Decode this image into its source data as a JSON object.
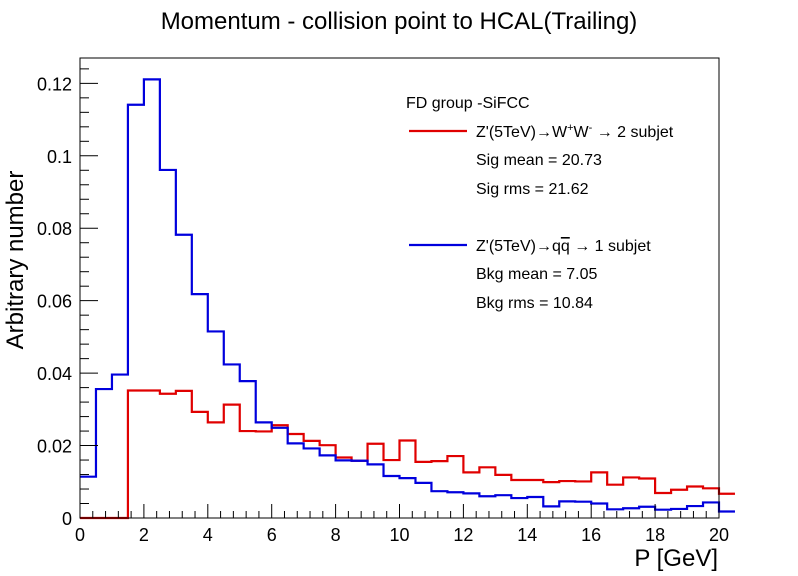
{
  "chart_data": {
    "type": "line",
    "title": "Momentum - collision point to HCAL(Trailing)",
    "xlabel": "P [GeV]",
    "ylabel": "Arbitrary number",
    "xlim": [
      0,
      20
    ],
    "ylim": [
      0,
      0.127
    ],
    "xticks": [
      0,
      2,
      4,
      6,
      8,
      10,
      12,
      14,
      16,
      18,
      20
    ],
    "xtick_labels": [
      "0",
      "2",
      "4",
      "6",
      "8",
      "10",
      "12",
      "14",
      "16",
      "18",
      "20"
    ],
    "yticks": [
      0,
      0.02,
      0.04,
      0.06,
      0.08,
      0.1,
      0.12
    ],
    "ytick_labels": [
      "0",
      "0.02",
      "0.04",
      "0.06",
      "0.08",
      "0.1",
      "0.12"
    ],
    "bin_width": 0.5,
    "grid": false,
    "legend": {
      "header": "FD group -SiFCC",
      "placement": "top-right",
      "entries": [
        {
          "series": 0,
          "label_parts": [
            "Z'(5TeV)",
            "→",
            "W",
            "+",
            "W",
            "-",
            " → 2 subjet"
          ],
          "stats": [
            "Sig mean = 20.73",
            "Sig rms = 21.62"
          ]
        },
        {
          "series": 1,
          "label_parts": [
            "Z'(5TeV)",
            "→",
            "q",
            "q",
            " → 1 subjet"
          ],
          "stats": [
            "Bkg mean = 7.05",
            "Bkg rms = 10.84"
          ]
        }
      ]
    },
    "series": [
      {
        "color": "#e00000",
        "bin_edges_start": 0,
        "values": [
          0,
          0,
          0,
          0.0352,
          0.0352,
          0.0343,
          0.0351,
          0.0293,
          0.0264,
          0.0313,
          0.024,
          0.0239,
          0.0256,
          0.0232,
          0.0213,
          0.0201,
          0.0167,
          0.0158,
          0.0205,
          0.016,
          0.0214,
          0.0155,
          0.0157,
          0.0171,
          0.0126,
          0.014,
          0.0119,
          0.0105,
          0.0105,
          0.0099,
          0.0102,
          0.0101,
          0.0126,
          0.0092,
          0.0112,
          0.0109,
          0.0069,
          0.0078,
          0.0087,
          0.0082,
          0.0067
        ]
      },
      {
        "color": "#0000dd",
        "bin_edges_start": 0,
        "values": [
          0.0114,
          0.0356,
          0.0396,
          0.1141,
          0.1211,
          0.0961,
          0.0782,
          0.0618,
          0.0515,
          0.0424,
          0.0378,
          0.0264,
          0.0249,
          0.0206,
          0.0192,
          0.0173,
          0.0159,
          0.0158,
          0.0148,
          0.0116,
          0.011,
          0.0097,
          0.0074,
          0.0071,
          0.0068,
          0.006,
          0.0063,
          0.0055,
          0.0058,
          0.0032,
          0.0046,
          0.0045,
          0.004,
          0.0024,
          0.0027,
          0.0031,
          0.0023,
          0.0025,
          0.0033,
          0.0043,
          0.0018
        ]
      }
    ]
  }
}
